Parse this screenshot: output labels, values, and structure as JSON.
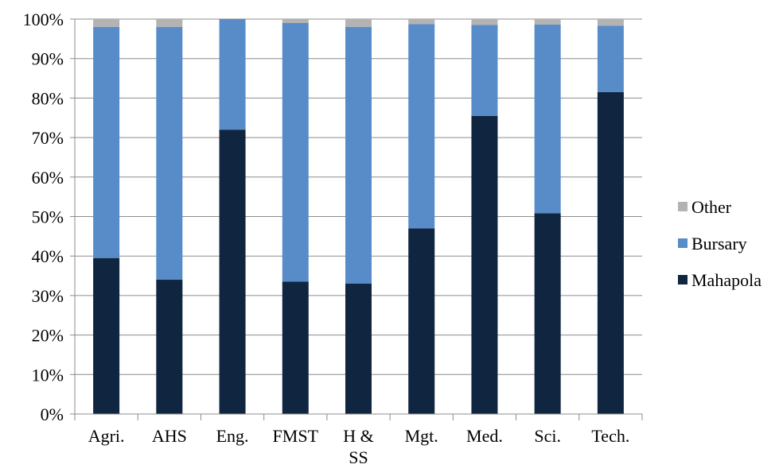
{
  "chart_data": {
    "type": "bar",
    "stacked": true,
    "percent": true,
    "categories": [
      "Agri.",
      "AHS",
      "Eng.",
      "FMST",
      "H & SS",
      "Mgt.",
      "Med.",
      "Sci.",
      "Tech."
    ],
    "series": [
      {
        "name": "Mahapola",
        "color": "#0f2540",
        "values": [
          39.5,
          34.0,
          72.0,
          33.5,
          33.0,
          47.0,
          75.5,
          50.8,
          81.5
        ]
      },
      {
        "name": "Bursary",
        "color": "#588cc8",
        "values": [
          58.5,
          64.0,
          28.0,
          65.5,
          65.0,
          51.7,
          23.0,
          47.8,
          16.8
        ]
      },
      {
        "name": "Other",
        "color": "#b3b3b3",
        "values": [
          2.0,
          2.0,
          0.0,
          1.0,
          2.0,
          1.3,
          1.5,
          1.4,
          1.7
        ]
      }
    ],
    "ylim": [
      0,
      100
    ],
    "yticks": [
      "0%",
      "10%",
      "20%",
      "30%",
      "40%",
      "50%",
      "60%",
      "70%",
      "80%",
      "90%",
      "100%"
    ],
    "grid": true,
    "legend_position": "right",
    "legend_order": [
      "Other",
      "Bursary",
      "Mahapola"
    ],
    "title": "",
    "xlabel": "",
    "ylabel": ""
  }
}
